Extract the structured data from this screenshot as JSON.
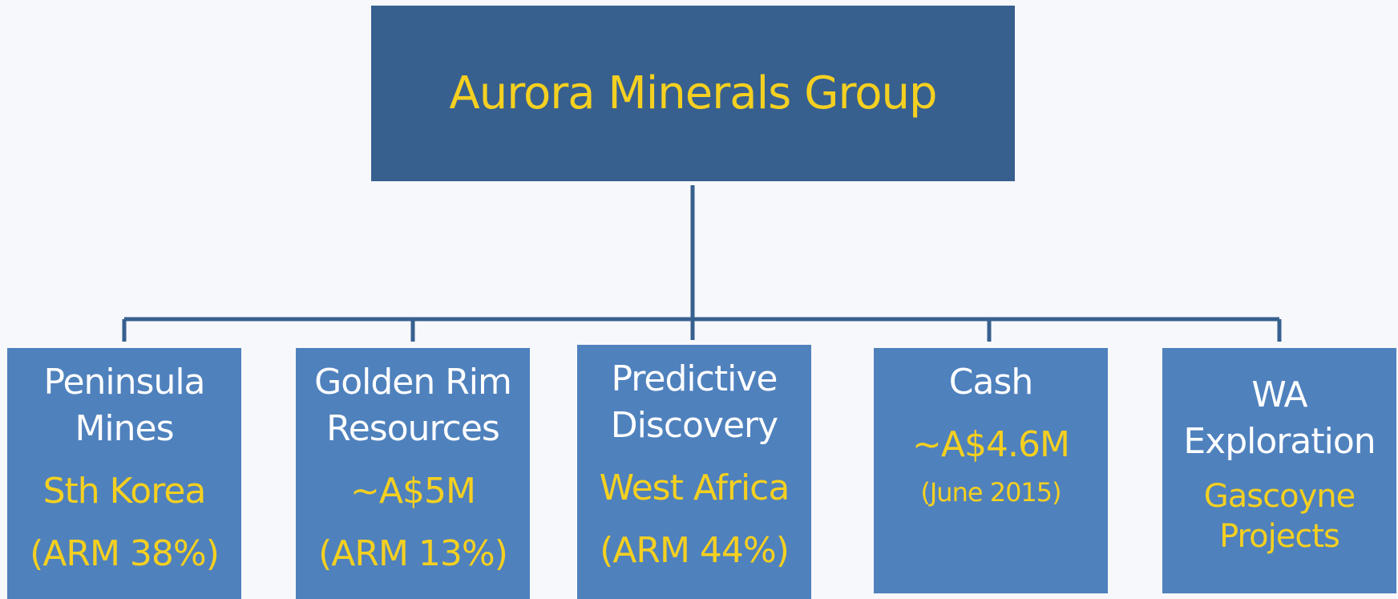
{
  "title": "Aurora Minerals Group",
  "nodes": [
    {
      "name": "Peninsula Mines",
      "details": [
        "Sth Korea",
        "(ARM 38%)"
      ]
    },
    {
      "name": "Golden Rim Resources",
      "details": [
        "~A$5M",
        "(ARM 13%)"
      ]
    },
    {
      "name": "Predictive Discovery",
      "details": [
        "West Africa",
        "(ARM 44%)"
      ]
    },
    {
      "name": "Cash",
      "details": [
        "~A$4.6M",
        "(June 2015)"
      ]
    },
    {
      "name": "WA Exploration",
      "details": [
        "Gascoyne Projects"
      ]
    }
  ]
}
